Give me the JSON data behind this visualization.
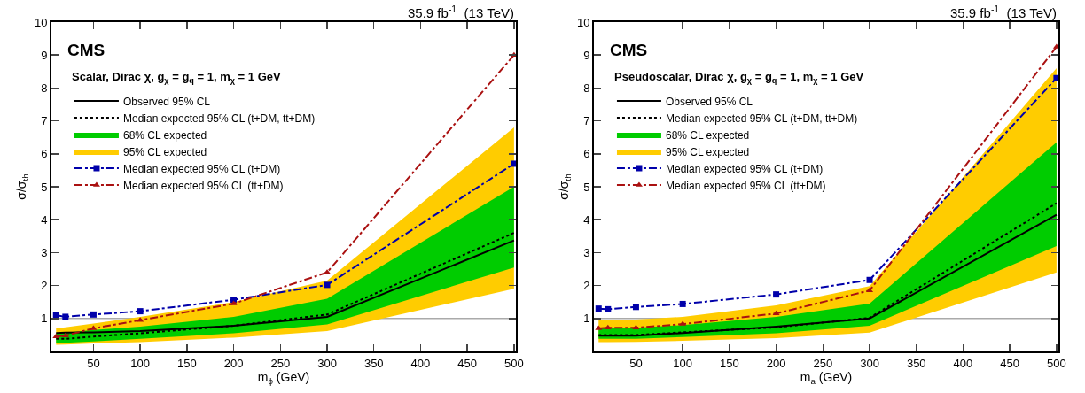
{
  "chart_data": [
    {
      "type": "line",
      "annotations": [
        "35.9 fb$^{-1}$  (13 TeV)",
        "CMS",
        "Scalar, Dirac χ, g$_{χ}$ = g$_{q}$ = 1, m$_{χ}$ = 1 GeV"
      ],
      "xlabel": "m$_{ϕ}$ (GeV)",
      "ylabel": "σ/σ$_{th}$",
      "x": [
        10,
        20,
        50,
        100,
        200,
        300,
        500
      ],
      "xlim": [
        5,
        502
      ],
      "xticks": [
        50,
        100,
        150,
        200,
        250,
        300,
        350,
        400,
        450,
        500
      ],
      "ylim": [
        0,
        10
      ],
      "yticks": [
        1,
        2,
        3,
        4,
        5,
        6,
        7,
        8,
        9,
        10
      ],
      "grid": false,
      "legend": "top left",
      "ref_lines": [
        {
          "axis": "y",
          "value": 1,
          "color": "#aaaaaa",
          "line_style": "solid"
        }
      ],
      "series": [
        {
          "name": "Observed 95% CL",
          "color": "#000000",
          "line_style": "solid",
          "marker": "none",
          "values": [
            0.56,
            0.57,
            0.58,
            0.62,
            0.78,
            1.05,
            3.37
          ]
        },
        {
          "name": "Median expected 95% CL (t+DM, tt+DM)",
          "color": "#000000",
          "line_style": "dotted",
          "marker": "none",
          "values": [
            0.38,
            0.38,
            0.45,
            0.55,
            0.78,
            1.12,
            3.6
          ]
        },
        {
          "name": "68% CL expected",
          "type": "area",
          "color": "#00cc00",
          "values": [
            null,
            null,
            null,
            null,
            null,
            null,
            null
          ],
          "lower": [
            0.25,
            0.26,
            0.3,
            0.38,
            0.55,
            0.82,
            2.55
          ],
          "upper": [
            0.55,
            0.57,
            0.65,
            0.75,
            1.05,
            1.6,
            5.0
          ]
        },
        {
          "name": "95% CL expected",
          "type": "area",
          "color": "#ffcc00",
          "values": [
            null,
            null,
            null,
            null,
            null,
            null,
            null
          ],
          "lower": [
            0.2,
            0.21,
            0.24,
            0.28,
            0.42,
            0.62,
            1.9
          ],
          "upper": [
            0.7,
            0.73,
            0.85,
            1.05,
            1.5,
            2.15,
            6.8
          ]
        },
        {
          "name": "Median expected 95% CL (t+DM)",
          "color": "#0000aa",
          "line_style": "dashdot",
          "marker": "square",
          "values": [
            1.1,
            1.05,
            1.12,
            1.22,
            1.57,
            2.02,
            5.7
          ]
        },
        {
          "name": "Median expected 95% CL (tt+DM)",
          "color": "#aa1111",
          "line_style": "dashdot",
          "marker": "triangle",
          "values": [
            0.45,
            0.48,
            0.7,
            0.95,
            1.45,
            2.4,
            9.0
          ]
        }
      ]
    },
    {
      "type": "line",
      "annotations": [
        "35.9 fb$^{-1}$  (13 TeV)",
        "CMS",
        "Pseudoscalar, Dirac χ, g$_{χ}$ = g$_{q}$ = 1, m$_{χ}$ = 1 GeV"
      ],
      "xlabel": "m$_{a}$ (GeV)",
      "ylabel": "σ/σ$_{th}$",
      "x": [
        10,
        20,
        50,
        100,
        200,
        300,
        500
      ],
      "xlim": [
        5,
        502
      ],
      "xticks": [
        50,
        100,
        150,
        200,
        250,
        300,
        350,
        400,
        450,
        500
      ],
      "ylim": [
        0,
        10
      ],
      "yticks": [
        1,
        2,
        3,
        4,
        5,
        6,
        7,
        8,
        9,
        10
      ],
      "grid": false,
      "legend": "top left",
      "ref_lines": [
        {
          "axis": "y",
          "value": 1,
          "color": "#aaaaaa",
          "line_style": "solid"
        }
      ],
      "series": [
        {
          "name": "Observed 95% CL",
          "color": "#000000",
          "line_style": "solid",
          "marker": "none",
          "values": [
            0.48,
            0.48,
            0.48,
            0.56,
            0.75,
            1.0,
            4.15
          ]
        },
        {
          "name": "Median expected 95% CL (t+DM, tt+DM)",
          "color": "#000000",
          "line_style": "dotted",
          "marker": "none",
          "values": [
            0.5,
            0.5,
            0.5,
            0.58,
            0.73,
            1.02,
            4.5
          ]
        },
        {
          "name": "68% CL expected",
          "type": "area",
          "color": "#00cc00",
          "values": [
            null,
            null,
            null,
            null,
            null,
            null,
            null
          ],
          "lower": [
            0.38,
            0.38,
            0.38,
            0.44,
            0.55,
            0.78,
            3.2
          ],
          "upper": [
            0.7,
            0.7,
            0.72,
            0.8,
            1.05,
            1.45,
            6.35
          ]
        },
        {
          "name": "95% CL expected",
          "type": "area",
          "color": "#ffcc00",
          "values": [
            null,
            null,
            null,
            null,
            null,
            null,
            null
          ],
          "lower": [
            0.28,
            0.28,
            0.29,
            0.32,
            0.4,
            0.57,
            2.4
          ],
          "upper": [
            0.95,
            0.95,
            0.97,
            1.05,
            1.4,
            1.98,
            8.6
          ]
        },
        {
          "name": "Median expected 95% CL (t+DM)",
          "color": "#0000aa",
          "line_style": "dashdot",
          "marker": "square",
          "values": [
            1.3,
            1.28,
            1.35,
            1.44,
            1.73,
            2.17,
            8.3
          ]
        },
        {
          "name": "Median expected 95% CL (tt+DM)",
          "color": "#aa1111",
          "line_style": "dashdot",
          "marker": "triangle",
          "values": [
            0.7,
            0.72,
            0.72,
            0.83,
            1.15,
            1.85,
            9.25
          ]
        }
      ]
    }
  ]
}
